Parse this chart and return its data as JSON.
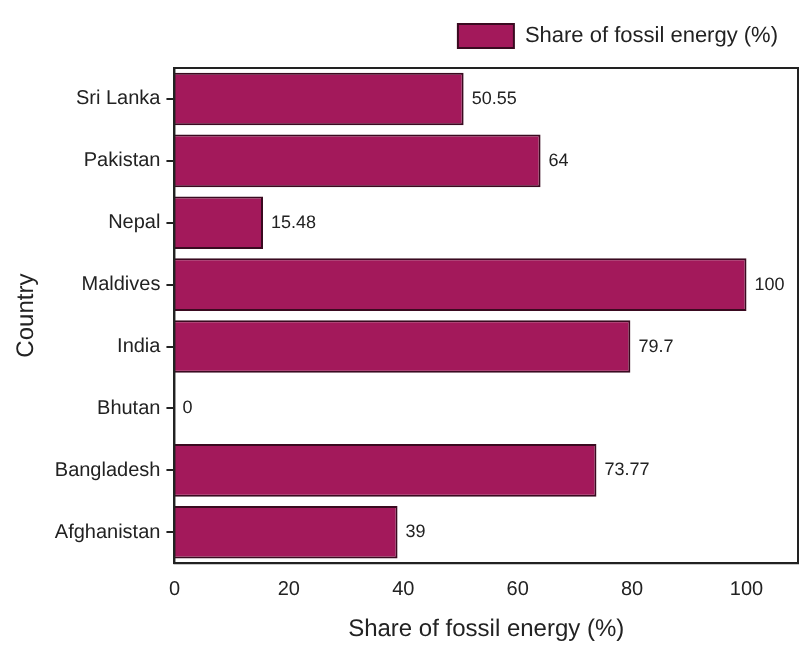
{
  "chart_data": {
    "type": "bar",
    "orientation": "horizontal",
    "xlabel": "Share of fossil energy (%)",
    "ylabel": "Country",
    "categories": [
      "Sri Lanka",
      "Pakistan",
      "Nepal",
      "Maldives",
      "India",
      "Bhutan",
      "Bangladesh",
      "Afghanistan"
    ],
    "series": [
      {
        "name": "Share of fossil energy (%)",
        "color": "#a3195b",
        "values": [
          50.55,
          64,
          15.48,
          100,
          79.7,
          0,
          73.77,
          39
        ]
      }
    ],
    "data_labels": true,
    "xlim": [
      0,
      109
    ],
    "xticks": [
      0,
      20,
      40,
      60,
      80,
      100
    ],
    "grid": false,
    "legend": "top right"
  }
}
